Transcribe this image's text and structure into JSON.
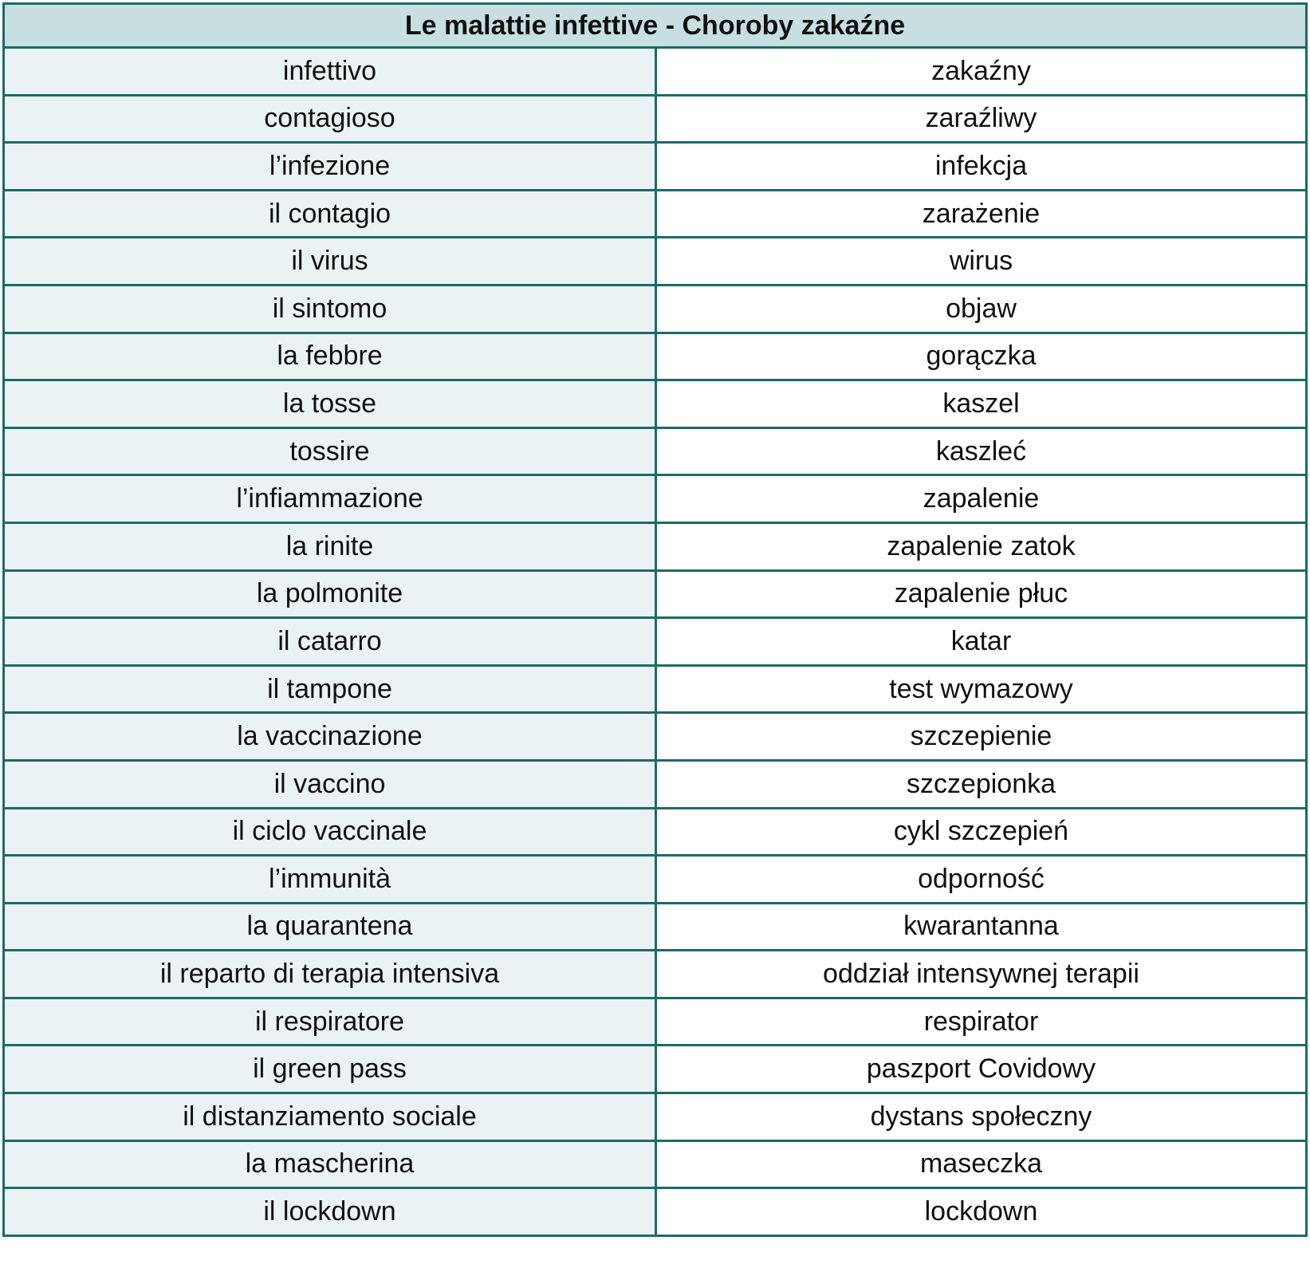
{
  "title": "Le malattie infettive - Choroby zakaźne",
  "colors": {
    "border": "#1d6a68",
    "header_bg": "#c8dfe1",
    "left_bg": "#eaf2f3"
  },
  "rows": [
    {
      "it": "infettivo",
      "pl": "zakaźny"
    },
    {
      "it": "contagioso",
      "pl": "zaraźliwy"
    },
    {
      "it": "l’infezione",
      "pl": "infekcja"
    },
    {
      "it": "il contagio",
      "pl": "zarażenie"
    },
    {
      "it": "il virus",
      "pl": "wirus"
    },
    {
      "it": "il sintomo",
      "pl": "objaw"
    },
    {
      "it": "la febbre",
      "pl": "gorączka"
    },
    {
      "it": "la tosse",
      "pl": "kaszel"
    },
    {
      "it": "tossire",
      "pl": "kaszleć"
    },
    {
      "it": "l’infiammazione",
      "pl": "zapalenie"
    },
    {
      "it": "la rinite",
      "pl": "zapalenie zatok"
    },
    {
      "it": "la polmonite",
      "pl": "zapalenie płuc"
    },
    {
      "it": "il catarro",
      "pl": "katar"
    },
    {
      "it": "il tampone",
      "pl": "test wymazowy"
    },
    {
      "it": "la vaccinazione",
      "pl": "szczepienie"
    },
    {
      "it": "il vaccino",
      "pl": "szczepionka"
    },
    {
      "it": "il ciclo vaccinale",
      "pl": "cykl szczepień"
    },
    {
      "it": "l’immunità",
      "pl": "odporność"
    },
    {
      "it": "la quarantena",
      "pl": "kwarantanna"
    },
    {
      "it": "il reparto di terapia intensiva",
      "pl": "oddział intensywnej terapii"
    },
    {
      "it": "il respiratore",
      "pl": "respirator"
    },
    {
      "it": "il green pass",
      "pl": "paszport Covidowy"
    },
    {
      "it": "il distanziamento sociale",
      "pl": "dystans społeczny"
    },
    {
      "it": "la mascherina",
      "pl": "maseczka"
    },
    {
      "it": "il lockdown",
      "pl": "lockdown"
    }
  ]
}
